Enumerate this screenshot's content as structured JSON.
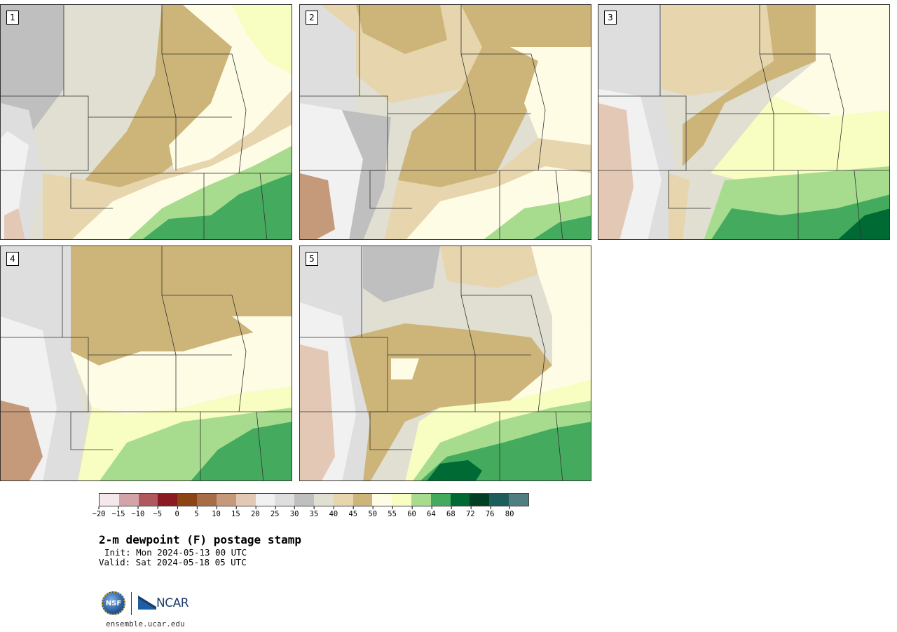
{
  "panels": [
    {
      "label": "1"
    },
    {
      "label": "2"
    },
    {
      "label": "3"
    },
    {
      "label": "4"
    },
    {
      "label": "5"
    }
  ],
  "colorbar": {
    "colors": [
      "#f4e8ea",
      "#d4a3a8",
      "#b0585e",
      "#8b1a22",
      "#8a4512",
      "#a66d47",
      "#c49a7b",
      "#e3c8b6",
      "#f1f1f1",
      "#dedede",
      "#bfbfbf",
      "#e0dfd2",
      "#e6d5ad",
      "#cdb57a",
      "#fffce6",
      "#f8fdc1",
      "#a7dc8f",
      "#44ab5e",
      "#006a35",
      "#003f26",
      "#1e5e5a",
      "#507d80"
    ],
    "ticks": [
      "−20",
      "−15",
      "−10",
      "−5",
      "0",
      "5",
      "10",
      "15",
      "20",
      "25",
      "30",
      "35",
      "40",
      "45",
      "50",
      "55",
      "60",
      "64",
      "68",
      "72",
      "76",
      "80"
    ]
  },
  "title": "2-m dewpoint (F) postage stamp",
  "init": "Init: Mon 2024-05-13 00 UTC",
  "valid": "Valid: Sat 2024-05-18 05 UTC",
  "logos": {
    "nsf": "NSF",
    "ncar": "NCAR"
  },
  "site": "ensemble.ucar.edu"
}
